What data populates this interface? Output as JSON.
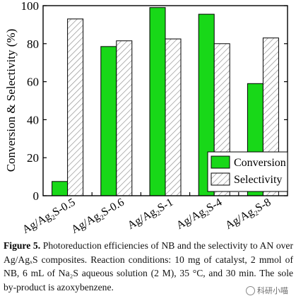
{
  "chart_data": {
    "type": "bar",
    "title": "",
    "xlabel": "",
    "ylabel": "Conversion & Selectivity (%)",
    "ylim": [
      0,
      100
    ],
    "yticks": [
      "0",
      "20",
      "40",
      "60",
      "80",
      "100"
    ],
    "categories": [
      "Ag/Ag₂S-0.5",
      "Ag/Ag₂S-0.6",
      "Ag/Ag₂S-1",
      "Ag/Ag₂S-4",
      "Ag/Ag₂S-8"
    ],
    "series": [
      {
        "name": "Conversion",
        "values": [
          7.5,
          78.5,
          99,
          95.5,
          59
        ],
        "color": "#18d818",
        "pattern": "solid"
      },
      {
        "name": "Selectivity",
        "values": [
          93,
          81.5,
          82.5,
          80,
          83
        ],
        "color": "#ffffff",
        "pattern": "diagonal-hatch"
      }
    ],
    "legend_position": "bottom-right",
    "grid": false
  },
  "caption": {
    "label": "Figure 5.",
    "text": " Photoreduction efficiencies of NB and the selectivity to AN over Ag/AgₓS composites. Reaction conditions: 10 mg of catalyst, 2 mmol of NB, 6 mL of Na₂S aqueous solution (2 M), 35 °C, and 30 min. The sole by-product is azoxybenzene."
  },
  "watermark": {
    "text": "科研小喵",
    "icon": "wechat-icon"
  }
}
